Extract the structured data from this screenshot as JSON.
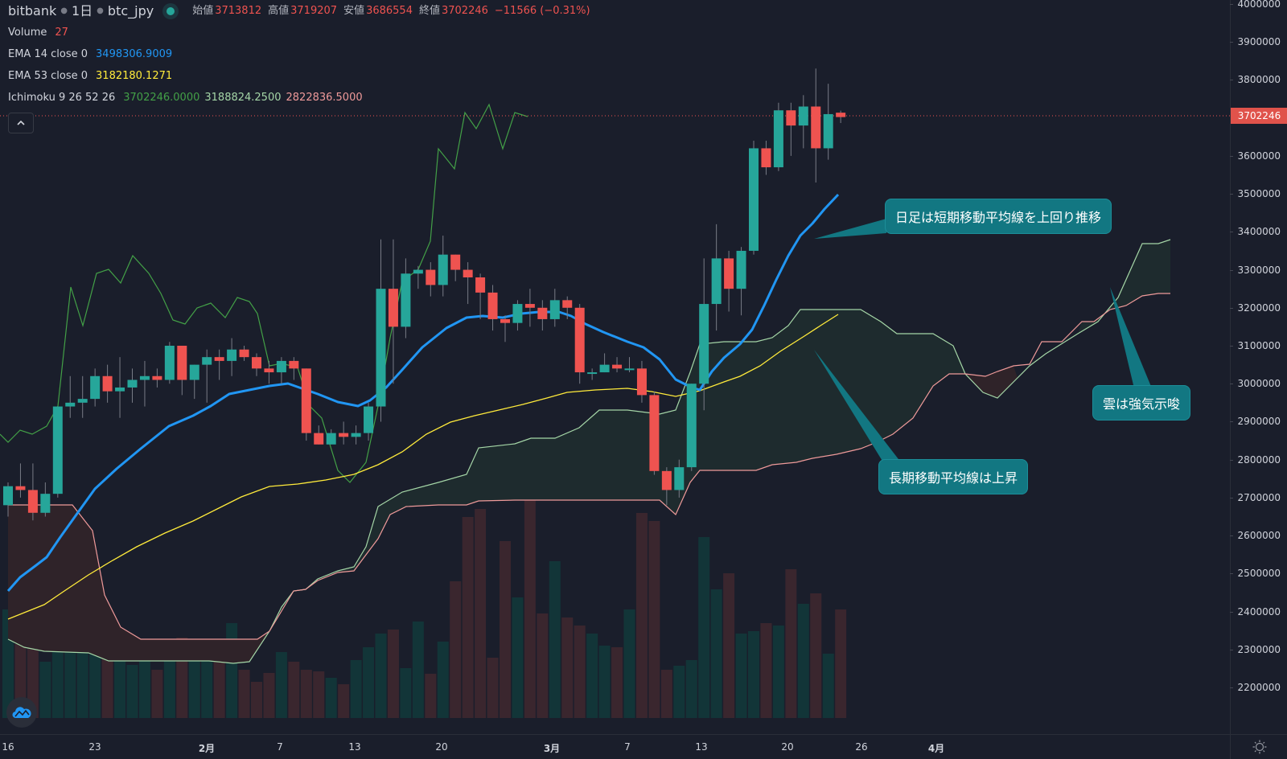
{
  "header": {
    "exchange": "bitbank",
    "interval": "1日",
    "symbol": "btc_jpy",
    "ohlc": [
      {
        "label": "始値",
        "value": "3713812"
      },
      {
        "label": "高値",
        "value": "3719207"
      },
      {
        "label": "安値",
        "value": "3686554"
      },
      {
        "label": "終値",
        "value": "3702246"
      }
    ],
    "change": "−11566 (−0.31%)"
  },
  "indicators": {
    "volume": {
      "label": "Volume",
      "value": "27"
    },
    "ema14": {
      "label": "EMA 14 close 0",
      "value": "3498306.9009",
      "color": "#2196f3"
    },
    "ema53": {
      "label": "EMA 53 close 0",
      "value": "3182180.1271",
      "color": "#ffeb3b"
    },
    "ichimoku": {
      "label": "Ichimoku 9 26 52 26",
      "values": [
        "3702246.0000",
        "3188824.2500",
        "2822836.5000"
      ],
      "colors": [
        "#43a047",
        "#a5d6a7",
        "#ef9a9a"
      ]
    }
  },
  "collapse_icon": "chevron-up",
  "price_axis": {
    "labels": [
      "4000000",
      "3900000",
      "3800000",
      "3600000",
      "3500000",
      "3400000",
      "3300000",
      "3200000",
      "3100000",
      "3000000",
      "2900000",
      "2800000",
      "2700000",
      "2600000",
      "2500000",
      "2400000",
      "2300000",
      "2200000"
    ],
    "current_price": "3702246"
  },
  "time_axis": {
    "labels": [
      {
        "text": "16",
        "x": 10,
        "bold": false
      },
      {
        "text": "23",
        "x": 118,
        "bold": false
      },
      {
        "text": "2月",
        "x": 257,
        "bold": true
      },
      {
        "text": "7",
        "x": 348,
        "bold": false
      },
      {
        "text": "13",
        "x": 441,
        "bold": false
      },
      {
        "text": "20",
        "x": 549,
        "bold": false
      },
      {
        "text": "3月",
        "x": 686,
        "bold": true
      },
      {
        "text": "7",
        "x": 780,
        "bold": false
      },
      {
        "text": "13",
        "x": 872,
        "bold": false
      },
      {
        "text": "20",
        "x": 979,
        "bold": false
      },
      {
        "text": "26",
        "x": 1071,
        "bold": false
      },
      {
        "text": "4月",
        "x": 1164,
        "bold": true
      }
    ]
  },
  "callouts": [
    {
      "text": "日足は短期移動平均線を上回り推移",
      "color": "#127782"
    },
    {
      "text": "長期移動平均線は上昇",
      "color": "#127782"
    },
    {
      "text": "雲は強気示唆",
      "color": "#127782"
    }
  ],
  "colors": {
    "background": "#1a1e2b",
    "up": "#26a69a",
    "down": "#ef5350",
    "volume_up": "#123538",
    "volume_down": "#3a262e",
    "cloud_bull": "#1e2b2e",
    "cloud_bear": "#2f2329"
  },
  "chart_data": {
    "type": "candlestick",
    "title": "bitbank 1日 btc_jpy",
    "xlabel": "",
    "ylabel": "",
    "ylim": [
      2150000,
      4000000
    ],
    "x_ticks": [
      "16",
      "23",
      "2月",
      "7",
      "13",
      "20",
      "3月",
      "7",
      "13",
      "20",
      "26",
      "4月"
    ],
    "candles": [
      [
        2680000,
        2740000,
        2650000,
        2730000
      ],
      [
        2730000,
        2790000,
        2700000,
        2720000
      ],
      [
        2720000,
        2790000,
        2640000,
        2660000
      ],
      [
        2660000,
        2740000,
        2650000,
        2710000
      ],
      [
        2710000,
        2940000,
        2700000,
        2940000
      ],
      [
        2940000,
        3020000,
        2910000,
        2950000
      ],
      [
        2950000,
        3020000,
        2910000,
        2960000
      ],
      [
        2960000,
        3040000,
        2940000,
        3020000
      ],
      [
        3020000,
        3050000,
        2950000,
        2980000
      ],
      [
        2980000,
        3070000,
        2910000,
        2990000
      ],
      [
        2990000,
        3040000,
        2950000,
        3010000
      ],
      [
        3010000,
        3060000,
        2940000,
        3020000
      ],
      [
        3020000,
        3040000,
        2990000,
        3010000
      ],
      [
        3010000,
        3110000,
        3000000,
        3100000
      ],
      [
        3100000,
        3100000,
        2970000,
        3010000
      ],
      [
        3010000,
        3050000,
        2960000,
        3050000
      ],
      [
        3050000,
        3090000,
        2950000,
        3070000
      ],
      [
        3070000,
        3090000,
        3010000,
        3060000
      ],
      [
        3060000,
        3120000,
        3020000,
        3090000
      ],
      [
        3090000,
        3100000,
        3060000,
        3070000
      ],
      [
        3070000,
        3080000,
        3020000,
        3040000
      ],
      [
        3040000,
        3060000,
        3000000,
        3030000
      ],
      [
        3030000,
        3070000,
        3000000,
        3060000
      ],
      [
        3060000,
        3070000,
        3010000,
        3040000
      ],
      [
        3040000,
        3020000,
        2850000,
        2870000
      ],
      [
        2870000,
        2890000,
        2840000,
        2840000
      ],
      [
        2840000,
        2880000,
        2840000,
        2870000
      ],
      [
        2870000,
        2900000,
        2840000,
        2860000
      ],
      [
        2860000,
        2890000,
        2840000,
        2870000
      ],
      [
        2870000,
        2950000,
        2850000,
        2940000
      ],
      [
        2940000,
        3380000,
        2900000,
        3250000
      ],
      [
        3250000,
        3380000,
        3000000,
        3150000
      ],
      [
        3150000,
        3330000,
        3120000,
        3290000
      ],
      [
        3290000,
        3310000,
        3250000,
        3300000
      ],
      [
        3300000,
        3320000,
        3230000,
        3260000
      ],
      [
        3260000,
        3390000,
        3230000,
        3340000
      ],
      [
        3340000,
        3330000,
        3270000,
        3300000
      ],
      [
        3300000,
        3320000,
        3210000,
        3280000
      ],
      [
        3280000,
        3290000,
        3170000,
        3240000
      ],
      [
        3240000,
        3260000,
        3140000,
        3170000
      ],
      [
        3170000,
        3180000,
        3110000,
        3160000
      ],
      [
        3160000,
        3220000,
        3140000,
        3210000
      ],
      [
        3210000,
        3250000,
        3150000,
        3200000
      ],
      [
        3200000,
        3220000,
        3140000,
        3170000
      ],
      [
        3170000,
        3250000,
        3150000,
        3220000
      ],
      [
        3220000,
        3230000,
        3170000,
        3200000
      ],
      [
        3200000,
        3210000,
        3000000,
        3030000
      ],
      [
        3030000,
        3040000,
        3010000,
        3030000
      ],
      [
        3030000,
        3080000,
        3030000,
        3050000
      ],
      [
        3050000,
        3070000,
        3030000,
        3040000
      ],
      [
        3040000,
        3070000,
        3030000,
        3040000
      ],
      [
        3040000,
        3060000,
        2950000,
        2970000
      ],
      [
        2970000,
        2980000,
        2760000,
        2770000
      ],
      [
        2770000,
        2780000,
        2680000,
        2720000
      ],
      [
        2720000,
        2800000,
        2700000,
        2780000
      ],
      [
        2780000,
        3000000,
        2770000,
        3000000
      ],
      [
        3000000,
        3330000,
        2930000,
        3210000
      ],
      [
        3210000,
        3420000,
        3140000,
        3330000
      ],
      [
        3330000,
        3350000,
        3190000,
        3250000
      ],
      [
        3250000,
        3360000,
        3180000,
        3350000
      ],
      [
        3350000,
        3640000,
        3340000,
        3620000
      ],
      [
        3620000,
        3640000,
        3550000,
        3570000
      ],
      [
        3570000,
        3740000,
        3560000,
        3720000
      ],
      [
        3720000,
        3740000,
        3600000,
        3680000
      ],
      [
        3680000,
        3760000,
        3620000,
        3730000
      ],
      [
        3730000,
        3830000,
        3530000,
        3620000
      ],
      [
        3620000,
        3790000,
        3590000,
        3710000
      ],
      [
        3713812,
        3719207,
        3686554,
        3702246
      ]
    ],
    "series": [
      {
        "name": "EMA 14",
        "color": "#2196f3",
        "last": 3498306.9
      },
      {
        "name": "EMA 53",
        "color": "#ffeb3b",
        "last": 3182180.1
      },
      {
        "name": "Ichimoku Chikou",
        "color": "#43a047",
        "last": 3702246
      },
      {
        "name": "Ichimoku Senkou A",
        "color": "#a5d6a7",
        "last": 3188824.25
      },
      {
        "name": "Ichimoku Senkou B",
        "color": "#ef9a9a",
        "last": 2822836.5
      }
    ],
    "annotations": [
      "日足は短期移動平均線を上回り推移",
      "長期移動平均線は上昇",
      "雲は強気示唆"
    ],
    "grid": false,
    "legend_position": "top-left"
  }
}
